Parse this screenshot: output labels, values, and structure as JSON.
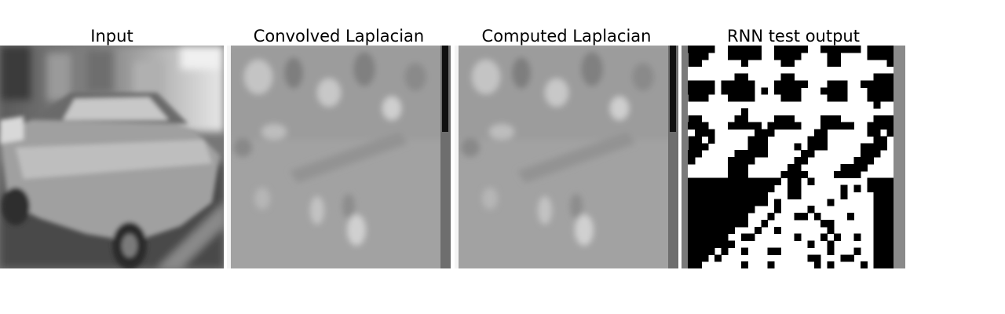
{
  "figure": {
    "panels": [
      {
        "title": "Input",
        "image_kind": "grayscale photo of a car"
      },
      {
        "title": "Convolved Laplacian",
        "image_kind": "laplacian response map"
      },
      {
        "title": "Computed Laplacian",
        "image_kind": "laplacian response map"
      },
      {
        "title": "RNN test output",
        "image_kind": "binary thresholded map"
      }
    ],
    "colors": {
      "background": "#ffffff",
      "laplacian_mid_gray": "#a2a2a2",
      "binary_black": "#000000",
      "binary_white": "#ffffff",
      "border_gray": "#8a8a8a"
    }
  }
}
